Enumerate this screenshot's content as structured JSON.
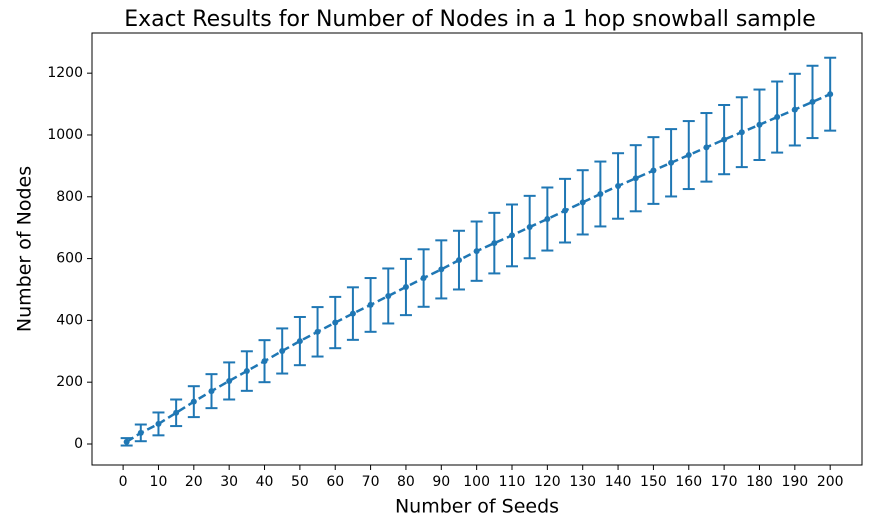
{
  "chart_data": {
    "type": "errorbar",
    "title": "Exact Results for Number of Nodes in a 1 hop snowball sample",
    "xlabel": "Number of Seeds",
    "ylabel": "Number of Nodes",
    "x": [
      1,
      5,
      10,
      15,
      20,
      25,
      30,
      35,
      40,
      45,
      50,
      55,
      60,
      65,
      70,
      75,
      80,
      85,
      90,
      95,
      100,
      105,
      110,
      115,
      120,
      125,
      130,
      135,
      140,
      145,
      150,
      155,
      160,
      165,
      170,
      175,
      180,
      185,
      190,
      195,
      200
    ],
    "series": [
      {
        "name": "Number of Nodes",
        "color": "#1f77b4",
        "values": [
          7,
          36,
          65,
          101,
          137,
          171,
          204,
          236,
          268,
          301,
          333,
          363,
          393,
          422,
          450,
          479,
          508,
          537,
          565,
          595,
          624,
          650,
          675,
          702,
          728,
          755,
          782,
          809,
          835,
          860,
          885,
          910,
          935,
          960,
          985,
          1009,
          1033,
          1058,
          1082,
          1107,
          1132
        ],
        "errors": [
          12,
          27,
          37,
          43,
          50,
          55,
          60,
          64,
          68,
          73,
          78,
          80,
          83,
          85,
          87,
          89,
          91,
          93,
          94,
          95,
          96,
          98,
          100,
          101,
          102,
          103,
          104,
          105,
          106,
          107,
          108,
          109,
          110,
          111,
          112,
          113,
          114,
          115,
          116,
          117,
          118
        ]
      }
    ],
    "xlim": [
      -8.8,
      209
    ],
    "ylim": [
      -68,
      1330
    ],
    "xticks": [
      0,
      10,
      20,
      30,
      40,
      50,
      60,
      70,
      80,
      90,
      100,
      110,
      120,
      130,
      140,
      150,
      160,
      170,
      180,
      190,
      200
    ],
    "yticks": [
      0,
      200,
      400,
      600,
      800,
      1000,
      1200
    ],
    "grid": false
  }
}
